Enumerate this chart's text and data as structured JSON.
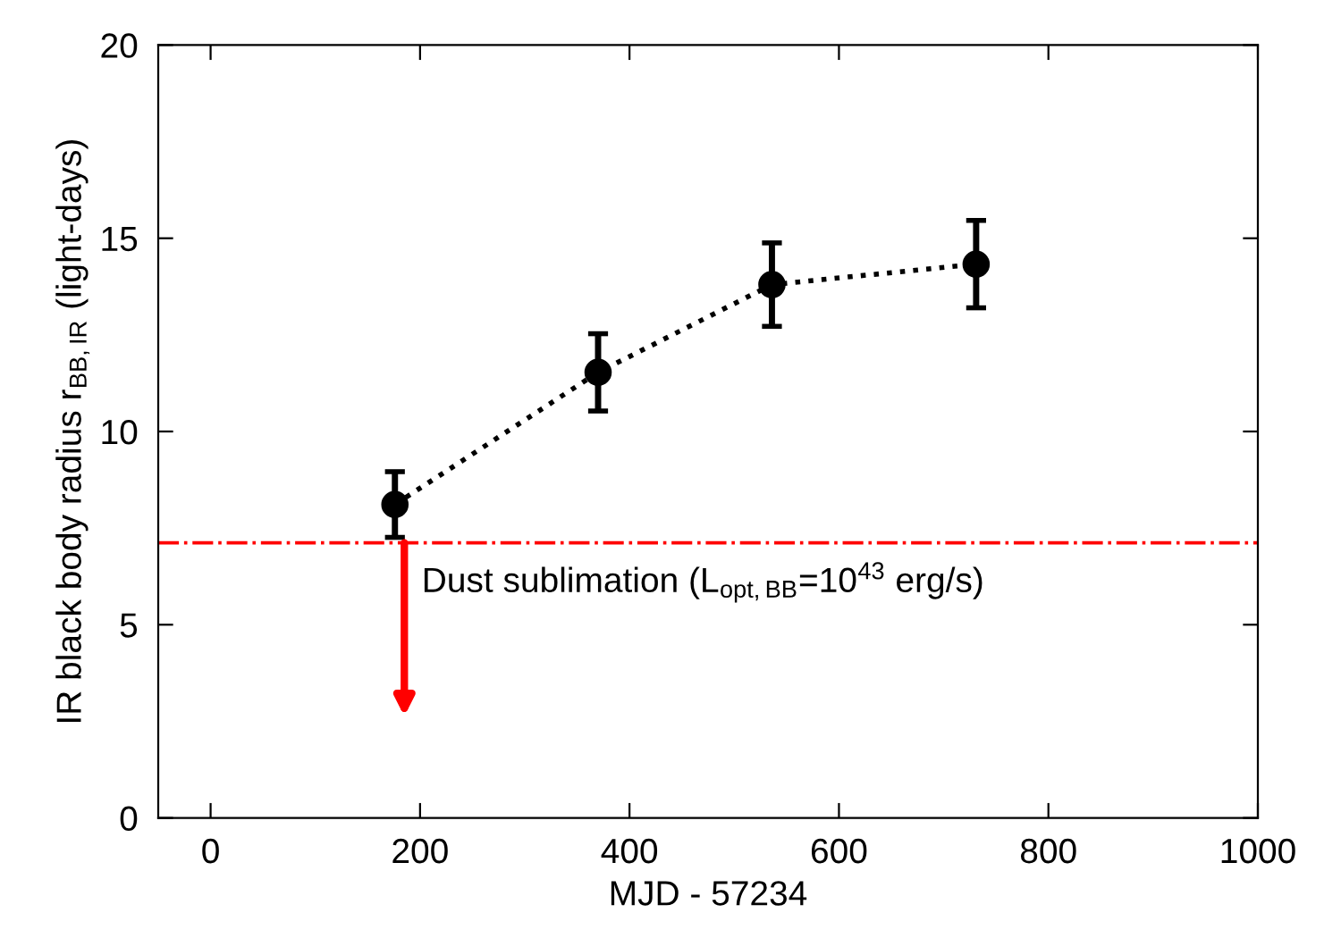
{
  "chart_data": {
    "type": "line",
    "xlabel": "MJD - 57234",
    "ylabel": "IR black body radius r$_{BB,IR}$ (light-days)",
    "x": [
      176,
      370,
      536,
      731
    ],
    "series": [
      {
        "color": "#000000",
        "values": [
          8.11,
          11.53,
          13.8,
          14.33
        ],
        "errors": [
          0.85,
          1.0,
          1.08,
          1.13
        ]
      }
    ],
    "marker": "circle",
    "line_style": "dotted",
    "xlim": [
      -50,
      1000
    ],
    "xticks": [
      0,
      200,
      400,
      600,
      800,
      1000
    ],
    "ylim": [
      0,
      20
    ],
    "yticks": [
      0,
      5,
      10,
      15,
      20
    ],
    "ref_lines": [
      {
        "axis": "y",
        "value": 7.12,
        "color": "#ff0000",
        "line_style": "dashdot"
      }
    ],
    "annotations": [
      {
        "text": "Dust sublimation (L$_{opt,BB}$=10$^{43}$ erg/s)",
        "x": 185,
        "y": 7.12
      }
    ],
    "grid": false,
    "legend": false
  }
}
